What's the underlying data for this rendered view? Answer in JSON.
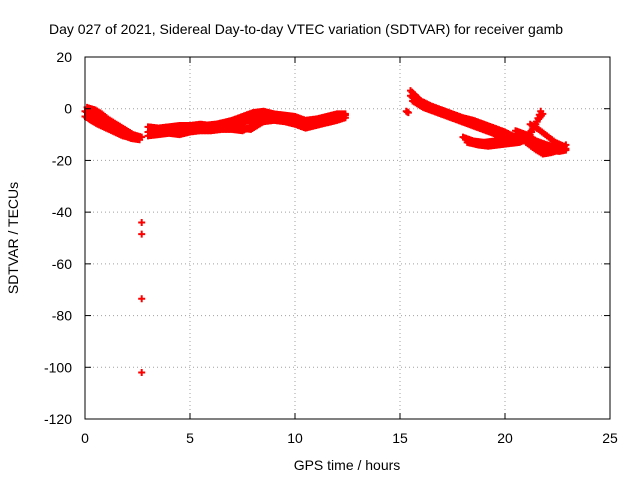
{
  "colors": {
    "series": "#ff0000",
    "axis": "#000000",
    "grid": "#a0a0a0",
    "background": "#ffffff"
  },
  "chart_data": {
    "type": "scatter",
    "title": "Day 027 of 2021, Sidereal Day-to-day VTEC variation (SDTVAR) for receiver gamb",
    "xlabel": "GPS time / hours",
    "ylabel": "SDTVAR / TECUs",
    "xlim": [
      0,
      25
    ],
    "ylim": [
      -120,
      20
    ],
    "xticks": [
      0,
      5,
      10,
      15,
      20,
      25
    ],
    "xtick_labels": [
      "0",
      "5",
      "10",
      "15",
      "20",
      "25"
    ],
    "yticks": [
      20,
      0,
      -20,
      -40,
      -60,
      -80,
      -100,
      -120
    ],
    "ytick_labels": [
      "20",
      "0",
      "-20",
      "-40",
      "-60",
      "-80",
      "-100",
      "-120"
    ],
    "grid": true,
    "marker": "plus",
    "series": [
      {
        "name": "SDTVAR",
        "tracks": [
          [
            [
              0.0,
              -1.0
            ],
            [
              0.3,
              -2.0
            ],
            [
              0.6,
              -3.5
            ],
            [
              1.0,
              -5.0
            ],
            [
              1.5,
              -7.5
            ],
            [
              2.0,
              -9.5
            ],
            [
              2.5,
              -11.0
            ]
          ],
          [
            [
              0.0,
              -3.0
            ],
            [
              0.4,
              -5.0
            ],
            [
              0.8,
              -6.5
            ],
            [
              1.2,
              -8.0
            ],
            [
              1.7,
              -10.0
            ],
            [
              2.2,
              -11.5
            ],
            [
              2.6,
              -12.0
            ]
          ],
          [
            [
              0.1,
              0.5
            ],
            [
              0.5,
              -0.5
            ],
            [
              0.8,
              -2.0
            ],
            [
              1.1,
              -4.0
            ],
            [
              1.5,
              -6.0
            ],
            [
              1.9,
              -8.0
            ],
            [
              2.3,
              -10.0
            ],
            [
              2.7,
              -11.0
            ]
          ],
          [
            [
              0.2,
              -4.0
            ],
            [
              0.6,
              -6.0
            ],
            [
              1.0,
              -7.5
            ],
            [
              1.4,
              -9.0
            ],
            [
              1.8,
              -10.5
            ],
            [
              2.2,
              -11.0
            ]
          ],
          [
            [
              3.0,
              -9.0
            ],
            [
              3.5,
              -8.5
            ],
            [
              4.0,
              -8.0
            ],
            [
              4.5,
              -7.5
            ],
            [
              5.0,
              -8.0
            ],
            [
              5.5,
              -7.5
            ],
            [
              6.0,
              -7.0
            ],
            [
              6.5,
              -6.5
            ],
            [
              7.0,
              -6.5
            ],
            [
              7.5,
              -5.5
            ],
            [
              8.0,
              -4.0
            ],
            [
              8.5,
              -2.5
            ],
            [
              9.0,
              -2.5
            ],
            [
              9.5,
              -3.0
            ],
            [
              10.0,
              -3.5
            ],
            [
              10.5,
              -5.0
            ],
            [
              11.0,
              -5.5
            ],
            [
              11.5,
              -4.5
            ],
            [
              12.0,
              -3.5
            ],
            [
              12.4,
              -2.5
            ]
          ],
          [
            [
              3.0,
              -7.0
            ],
            [
              3.5,
              -7.5
            ],
            [
              4.0,
              -7.0
            ],
            [
              4.5,
              -6.5
            ],
            [
              5.0,
              -6.5
            ],
            [
              5.5,
              -6.0
            ],
            [
              6.0,
              -6.5
            ],
            [
              6.5,
              -5.5
            ],
            [
              7.0,
              -4.5
            ],
            [
              7.5,
              -3.0
            ],
            [
              8.0,
              -1.5
            ],
            [
              8.5,
              -1.0
            ],
            [
              9.0,
              -2.0
            ],
            [
              9.5,
              -2.5
            ],
            [
              10.0,
              -3.0
            ],
            [
              10.5,
              -4.5
            ],
            [
              11.0,
              -4.0
            ],
            [
              11.5,
              -3.0
            ],
            [
              12.0,
              -2.0
            ],
            [
              12.4,
              -2.0
            ]
          ],
          [
            [
              3.0,
              -10.5
            ],
            [
              3.5,
              -10.0
            ],
            [
              4.0,
              -9.5
            ],
            [
              4.5,
              -10.0
            ],
            [
              5.0,
              -9.0
            ],
            [
              5.5,
              -8.5
            ],
            [
              6.0,
              -8.5
            ],
            [
              6.5,
              -8.0
            ],
            [
              7.0,
              -8.0
            ],
            [
              7.5,
              -8.5
            ],
            [
              8.0,
              -6.5
            ],
            [
              8.5,
              -5.0
            ],
            [
              9.0,
              -4.5
            ],
            [
              9.5,
              -5.0
            ],
            [
              10.0,
              -6.0
            ],
            [
              10.5,
              -7.5
            ],
            [
              11.0,
              -6.5
            ],
            [
              11.5,
              -5.5
            ],
            [
              12.0,
              -4.5
            ],
            [
              12.4,
              -3.5
            ]
          ],
          [
            [
              3.2,
              -8.5
            ],
            [
              3.8,
              -9.0
            ],
            [
              4.4,
              -8.5
            ],
            [
              5.0,
              -7.0
            ],
            [
              5.6,
              -6.5
            ],
            [
              6.2,
              -6.0
            ],
            [
              6.8,
              -7.0
            ],
            [
              7.4,
              -7.5
            ],
            [
              7.9,
              -8.0
            ],
            [
              8.4,
              -5.5
            ],
            [
              8.8,
              -3.5
            ],
            [
              9.3,
              -4.0
            ],
            [
              9.8,
              -5.0
            ],
            [
              10.3,
              -6.5
            ]
          ],
          [
            [
              15.5,
              7.0
            ],
            [
              16.0,
              3.0
            ],
            [
              16.5,
              1.0
            ],
            [
              17.0,
              -0.5
            ],
            [
              17.5,
              -2.0
            ],
            [
              18.0,
              -3.5
            ],
            [
              18.5,
              -4.5
            ],
            [
              19.0,
              -6.0
            ],
            [
              19.5,
              -7.5
            ],
            [
              20.0,
              -9.0
            ],
            [
              20.5,
              -11.0
            ]
          ],
          [
            [
              15.5,
              5.0
            ],
            [
              16.0,
              2.0
            ],
            [
              16.5,
              0.0
            ],
            [
              17.0,
              -1.5
            ],
            [
              17.5,
              -3.0
            ],
            [
              18.0,
              -4.5
            ],
            [
              18.5,
              -6.0
            ],
            [
              19.0,
              -7.5
            ],
            [
              19.5,
              -9.0
            ],
            [
              20.0,
              -10.5
            ],
            [
              20.5,
              -12.0
            ]
          ],
          [
            [
              15.6,
              3.0
            ],
            [
              16.1,
              0.5
            ],
            [
              16.6,
              -1.0
            ],
            [
              17.1,
              -2.5
            ],
            [
              17.6,
              -4.0
            ],
            [
              18.1,
              -5.5
            ],
            [
              18.6,
              -7.0
            ],
            [
              19.1,
              -8.5
            ],
            [
              19.6,
              -10.0
            ],
            [
              20.1,
              -11.5
            ],
            [
              20.6,
              -12.5
            ]
          ],
          [
            [
              18.0,
              -11.0
            ],
            [
              18.5,
              -12.5
            ],
            [
              19.0,
              -13.0
            ],
            [
              19.5,
              -12.5
            ],
            [
              20.0,
              -12.0
            ],
            [
              20.5,
              -12.5
            ],
            [
              21.0,
              -11.0
            ],
            [
              21.3,
              -8.0
            ],
            [
              21.5,
              -5.0
            ],
            [
              21.7,
              -1.0
            ]
          ],
          [
            [
              18.2,
              -13.0
            ],
            [
              18.7,
              -14.0
            ],
            [
              19.2,
              -14.5
            ],
            [
              19.7,
              -14.0
            ],
            [
              20.2,
              -13.5
            ],
            [
              20.7,
              -13.0
            ],
            [
              21.0,
              -12.0
            ],
            [
              21.2,
              -10.0
            ],
            [
              21.4,
              -7.0
            ],
            [
              21.6,
              -4.0
            ],
            [
              21.8,
              -2.0
            ]
          ],
          [
            [
              20.5,
              -8.5
            ],
            [
              21.0,
              -10.0
            ],
            [
              21.5,
              -12.5
            ],
            [
              22.0,
              -14.0
            ],
            [
              22.5,
              -15.0
            ],
            [
              22.9,
              -15.5
            ]
          ],
          [
            [
              20.6,
              -10.0
            ],
            [
              21.1,
              -12.5
            ],
            [
              21.6,
              -15.0
            ],
            [
              22.1,
              -16.0
            ],
            [
              22.6,
              -16.5
            ],
            [
              22.9,
              -16.0
            ]
          ],
          [
            [
              21.0,
              -13.0
            ],
            [
              21.4,
              -15.5
            ],
            [
              21.8,
              -17.5
            ],
            [
              22.2,
              -17.0
            ],
            [
              22.6,
              -16.0
            ],
            [
              22.9,
              -14.0
            ]
          ],
          [
            [
              21.2,
              -6.0
            ],
            [
              21.6,
              -8.0
            ],
            [
              22.0,
              -10.5
            ],
            [
              22.4,
              -13.0
            ],
            [
              22.8,
              -14.5
            ]
          ],
          [
            [
              15.3,
              -1.0
            ],
            [
              15.4,
              -1.5
            ]
          ]
        ],
        "outliers": [
          [
            2.7,
            -44.0
          ],
          [
            2.7,
            -48.5
          ],
          [
            2.7,
            -73.5
          ],
          [
            2.7,
            -102.0
          ]
        ]
      }
    ]
  }
}
